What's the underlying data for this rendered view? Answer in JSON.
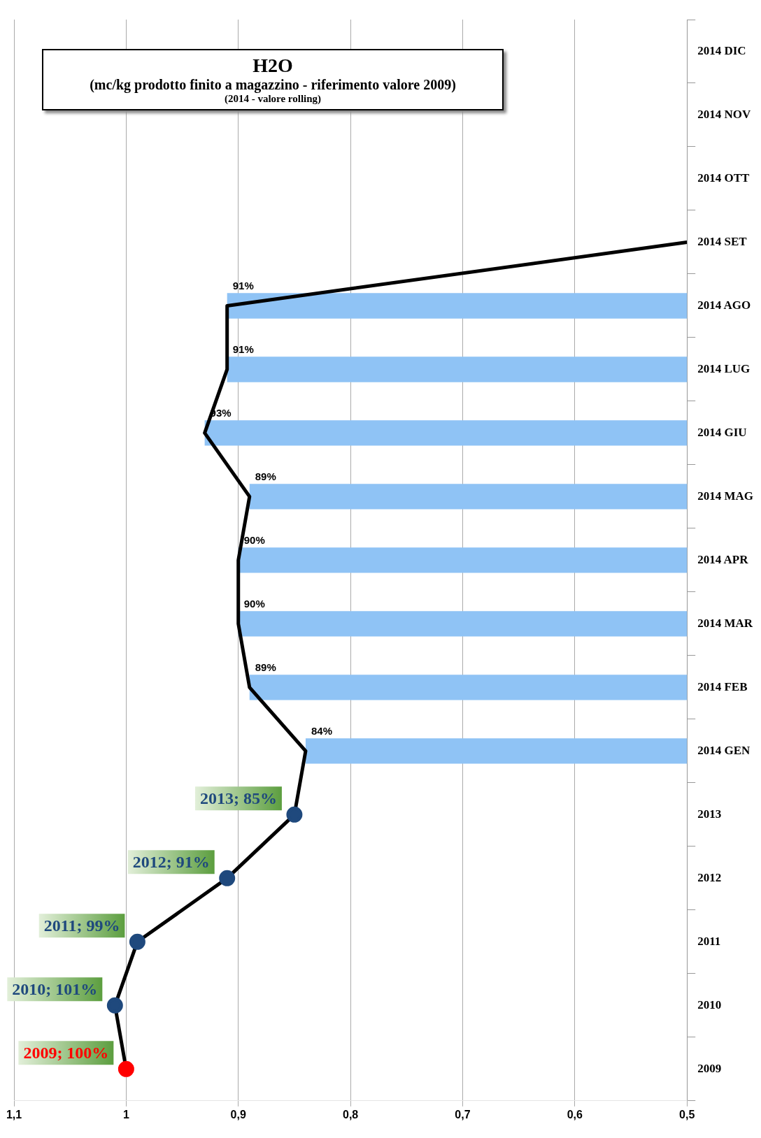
{
  "chart_data": {
    "type": "bar",
    "orientation": "horizontal",
    "title": "H2O",
    "subtitle": "(mc/kg prodotto finito a magazzino - riferimento valore 2009)",
    "annotations": [
      "(2014 - valore rolling)"
    ],
    "categories": [
      "2014 DIC",
      "2014 NOV",
      "2014 OTT",
      "2014 SET",
      "2014 AGO",
      "2014 LUG",
      "2014 GIU",
      "2014 MAG",
      "2014 APR",
      "2014 MAR",
      "2014 FEB",
      "2014 GEN",
      "2013",
      "2012",
      "2011",
      "2010",
      "2009"
    ],
    "series": [
      {
        "color": "#8fc3f5",
        "values": [
          null,
          null,
          null,
          null,
          0.91,
          0.91,
          0.93,
          0.89,
          0.9,
          0.9,
          0.89,
          0.84,
          null,
          null,
          null,
          null,
          null
        ],
        "value_labels": [
          null,
          null,
          null,
          null,
          "91%",
          "91%",
          "93%",
          "89%",
          "90%",
          "90%",
          "89%",
          "84%",
          null,
          null,
          null,
          null,
          null
        ]
      },
      {
        "type": "line",
        "color": "#000000",
        "values": [
          null,
          null,
          null,
          0.5,
          0.91,
          0.91,
          0.93,
          0.89,
          0.9,
          0.9,
          0.89,
          0.84,
          0.85,
          0.91,
          0.99,
          1.01,
          1.0
        ],
        "colors": [
          null,
          null,
          null,
          null,
          null,
          null,
          null,
          null,
          null,
          null,
          null,
          null,
          "#1f497d",
          "#1f497d",
          "#1f497d",
          "#1f497d",
          "#ff0000"
        ],
        "value_labels": [
          null,
          null,
          null,
          null,
          null,
          null,
          null,
          null,
          null,
          null,
          null,
          null,
          "2013; 85%",
          "2012; 91%",
          "2011; 99%",
          "2010; 101%",
          "2009; 100%"
        ]
      }
    ],
    "xlim": [
      1.1,
      0.5
    ],
    "xticks": [
      {
        "value": 1.1,
        "label": "1,1"
      },
      1,
      {
        "value": 0.9,
        "label": "0,9"
      },
      {
        "value": 0.8,
        "label": "0,8"
      },
      {
        "value": 0.7,
        "label": "0,7"
      },
      {
        "value": 0.6,
        "label": "0,6"
      },
      {
        "value": 0.5,
        "label": "0,5"
      }
    ],
    "grid": "x",
    "line_style": "solid"
  }
}
